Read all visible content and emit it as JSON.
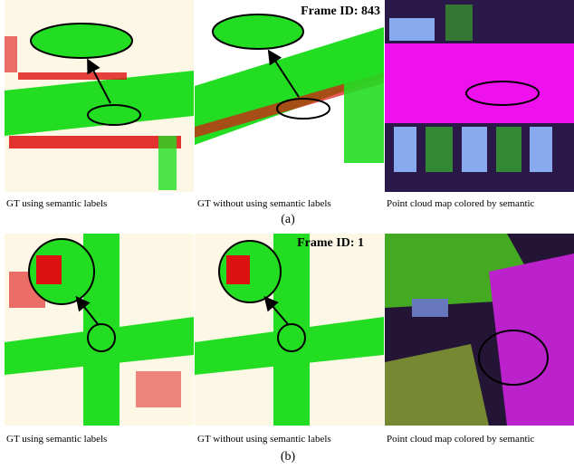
{
  "rows": [
    {
      "frame_id": "Frame ID: 843",
      "captions": [
        "GT using semantic labels",
        "GT without using semantic labels",
        "Point cloud map colored by semantic"
      ],
      "label": "(a)"
    },
    {
      "frame_id": "Frame ID: 1",
      "captions": [
        "GT using semantic labels",
        "GT without using semantic labels",
        "Point cloud map colored by semantic"
      ],
      "label": "(b)"
    }
  ]
}
